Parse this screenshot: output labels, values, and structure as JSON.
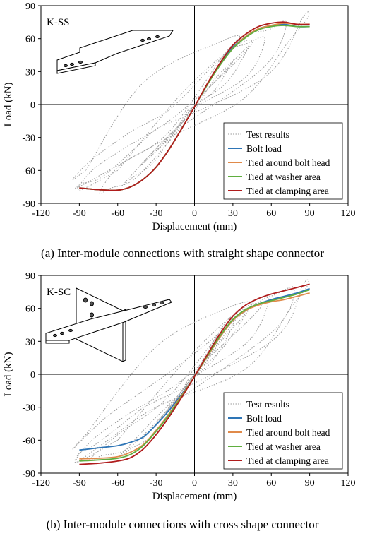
{
  "colors": {
    "test": "#9a9a9a",
    "bolt": "#2e75b6",
    "head": "#e08a4a",
    "washer": "#5fae3f",
    "clamp": "#b01c1c"
  },
  "chart_data": [
    {
      "type": "line",
      "panel_label": "K-SS",
      "caption": "(a) Inter-module connections with straight shape connector",
      "xlabel": "Displacement (mm)",
      "ylabel": "Load (kN)",
      "xlim": [
        -120,
        120
      ],
      "ylim": [
        -90,
        90
      ],
      "xticks": [
        "-120",
        "-90",
        "-60",
        "-30",
        "0",
        "30",
        "60",
        "90",
        "120"
      ],
      "yticks": [
        "90",
        "60",
        "30",
        "0",
        "-30",
        "-60",
        "-90"
      ],
      "grid": false,
      "legend_position": "bottom-right",
      "series": [
        {
          "name": "Test results",
          "style": "dotted",
          "color_key": "test"
        },
        {
          "name": "Bolt load",
          "style": "solid",
          "color_key": "bolt",
          "x": [
            -90,
            -75,
            -60,
            -50,
            -40,
            -30,
            -20,
            -10,
            0,
            10,
            20,
            30,
            40,
            50,
            60,
            70,
            80,
            90
          ],
          "y": [
            -76,
            -77.5,
            -78,
            -75,
            -68,
            -57,
            -41,
            -22,
            -2,
            18,
            37,
            52,
            62,
            69,
            72,
            73,
            71,
            71
          ]
        },
        {
          "name": "Tied around bolt head",
          "style": "solid",
          "color_key": "head",
          "x": [
            -90,
            -75,
            -60,
            -50,
            -40,
            -30,
            -20,
            -10,
            0,
            10,
            20,
            30,
            40,
            50,
            60,
            70,
            80,
            90
          ],
          "y": [
            -76,
            -77.5,
            -78,
            -75,
            -68,
            -57,
            -41,
            -22,
            -2,
            18,
            36,
            51,
            62,
            69,
            72,
            74,
            73,
            73
          ]
        },
        {
          "name": "Tied at washer area",
          "style": "solid",
          "color_key": "washer",
          "x": [
            -90,
            -75,
            -60,
            -50,
            -40,
            -30,
            -20,
            -10,
            0,
            10,
            20,
            30,
            40,
            50,
            60,
            70,
            80,
            90
          ],
          "y": [
            -76,
            -77.5,
            -78,
            -75,
            -68,
            -57,
            -41,
            -22,
            -2,
            18,
            36,
            51,
            61,
            68,
            71,
            72,
            71,
            71
          ]
        },
        {
          "name": "Tied at clamping area",
          "style": "solid",
          "color_key": "clamp",
          "x": [
            -90,
            -75,
            -60,
            -50,
            -40,
            -30,
            -20,
            -10,
            0,
            10,
            20,
            30,
            40,
            50,
            60,
            70,
            80,
            90
          ],
          "y": [
            -76,
            -77.5,
            -78,
            -75,
            -68,
            -57,
            -41,
            -22,
            -2,
            19,
            38,
            54,
            64,
            71,
            74,
            75,
            73,
            73
          ]
        }
      ],
      "test_loops": [
        {
          "x": [
            0,
            -12,
            -25,
            -30,
            -15,
            0,
            12,
            28,
            30,
            15,
            0
          ],
          "y": [
            0,
            -18,
            -36,
            -42,
            -24,
            0,
            16,
            36,
            40,
            12,
            0
          ]
        },
        {
          "x": [
            0,
            -15,
            -35,
            -42,
            -20,
            0,
            15,
            34,
            42,
            25,
            0
          ],
          "y": [
            0,
            -25,
            -48,
            -55,
            -28,
            -5,
            22,
            44,
            52,
            20,
            0
          ]
        },
        {
          "x": [
            -5,
            -30,
            -48,
            -55,
            -30,
            -5,
            25,
            40,
            55,
            40,
            -5
          ],
          "y": [
            -5,
            -50,
            -66,
            -72,
            -40,
            -10,
            45,
            55,
            60,
            25,
            -5
          ]
        },
        {
          "x": [
            -10,
            -45,
            -65,
            -74,
            -58,
            -20,
            30,
            58,
            72,
            55,
            -10
          ],
          "y": [
            -20,
            -66,
            -76,
            -80,
            -55,
            -25,
            55,
            68,
            75,
            35,
            -20
          ]
        },
        {
          "x": [
            -30,
            -70,
            -88,
            -92,
            -70,
            -20,
            38,
            72,
            88,
            85,
            55,
            -30
          ],
          "y": [
            -22,
            -64,
            -72,
            -76,
            -62,
            -30,
            5,
            55,
            78,
            80,
            25,
            -22
          ]
        },
        {
          "x": [
            -85,
            -95,
            -80,
            -50,
            -20,
            10,
            35,
            20,
            -40,
            -85
          ],
          "y": [
            -60,
            -68,
            -50,
            -25,
            -5,
            30,
            60,
            57,
            20,
            -60
          ]
        },
        {
          "x": [
            -60,
            -90,
            -80,
            -55,
            -20,
            20,
            45,
            30,
            -10,
            -60
          ],
          "y": [
            -60,
            -78,
            -60,
            -40,
            -15,
            25,
            56,
            52,
            10,
            -60
          ]
        }
      ]
    },
    {
      "type": "line",
      "panel_label": "K-SC",
      "caption": "(b) Inter-module connections with cross shape connector",
      "xlabel": "Displacement (mm)",
      "ylabel": "Load (kN)",
      "xlim": [
        -120,
        120
      ],
      "ylim": [
        -90,
        90
      ],
      "xticks": [
        "-120",
        "-90",
        "-60",
        "-30",
        "0",
        "30",
        "60",
        "90",
        "120"
      ],
      "yticks": [
        "90",
        "60",
        "30",
        "0",
        "-30",
        "-60",
        "-90"
      ],
      "grid": false,
      "legend_position": "bottom-right",
      "series": [
        {
          "name": "Test results",
          "style": "dotted",
          "color_key": "test"
        },
        {
          "name": "Bolt load",
          "style": "solid",
          "color_key": "bolt",
          "x": [
            -90,
            -75,
            -60,
            -50,
            -40,
            -30,
            -20,
            -10,
            0,
            10,
            20,
            30,
            40,
            50,
            60,
            70,
            80,
            90
          ],
          "y": [
            -69,
            -67,
            -65,
            -62,
            -57,
            -46,
            -33,
            -18,
            -2,
            16,
            34,
            49,
            58,
            64,
            68,
            71,
            74,
            78
          ]
        },
        {
          "name": "Tied around bolt head",
          "style": "solid",
          "color_key": "head",
          "x": [
            -90,
            -75,
            -60,
            -50,
            -40,
            -30,
            -20,
            -10,
            0,
            10,
            20,
            30,
            40,
            50,
            60,
            70,
            80,
            90
          ],
          "y": [
            -77,
            -76.5,
            -75,
            -71,
            -64,
            -51,
            -36,
            -19,
            -2,
            16,
            34,
            49,
            58,
            63,
            66,
            68,
            71,
            74
          ]
        },
        {
          "name": "Tied at washer area",
          "style": "solid",
          "color_key": "washer",
          "x": [
            -90,
            -75,
            -60,
            -50,
            -40,
            -30,
            -20,
            -10,
            0,
            10,
            20,
            30,
            40,
            50,
            60,
            70,
            80,
            90
          ],
          "y": [
            -79,
            -78,
            -76.5,
            -73,
            -65,
            -52,
            -37,
            -20,
            -2,
            17,
            35,
            50,
            59,
            64,
            67,
            70,
            73,
            77
          ]
        },
        {
          "name": "Tied at clamping area",
          "style": "solid",
          "color_key": "clamp",
          "x": [
            -90,
            -75,
            -60,
            -50,
            -40,
            -30,
            -20,
            -10,
            0,
            10,
            20,
            30,
            40,
            50,
            60,
            70,
            80,
            90
          ],
          "y": [
            -82,
            -81,
            -79,
            -76,
            -68,
            -55,
            -39,
            -21,
            -2,
            18,
            37,
            53,
            63,
            69,
            73,
            76,
            79,
            82
          ]
        }
      ],
      "test_loops": [
        {
          "x": [
            0,
            -12,
            -25,
            -28,
            -15,
            0,
            12,
            26,
            30,
            14,
            0
          ],
          "y": [
            0,
            -18,
            -38,
            -44,
            -24,
            0,
            18,
            40,
            44,
            12,
            0
          ]
        },
        {
          "x": [
            0,
            -18,
            -35,
            -40,
            -18,
            0,
            18,
            36,
            42,
            22,
            0
          ],
          "y": [
            0,
            -28,
            -52,
            -58,
            -30,
            -4,
            26,
            50,
            58,
            24,
            0
          ]
        },
        {
          "x": [
            -5,
            -30,
            -50,
            -58,
            -35,
            -5,
            25,
            45,
            58,
            42,
            -5
          ],
          "y": [
            -5,
            -52,
            -68,
            -74,
            -45,
            -8,
            48,
            62,
            68,
            30,
            -5
          ]
        },
        {
          "x": [
            -15,
            -50,
            -72,
            -82,
            -60,
            -20,
            35,
            62,
            78,
            62,
            -15
          ],
          "y": [
            -25,
            -66,
            -74,
            -78,
            -55,
            -20,
            58,
            72,
            78,
            40,
            -25
          ]
        },
        {
          "x": [
            -40,
            -75,
            -90,
            -92,
            -70,
            -30,
            40,
            75,
            88,
            85,
            60,
            -40
          ],
          "y": [
            -30,
            -62,
            -72,
            -80,
            -62,
            -30,
            5,
            60,
            80,
            82,
            30,
            -30
          ]
        },
        {
          "x": [
            -85,
            -95,
            -70,
            -40,
            -10,
            20,
            45,
            25,
            -30,
            -85
          ],
          "y": [
            -55,
            -68,
            -40,
            -15,
            10,
            38,
            64,
            60,
            25,
            -55
          ]
        },
        {
          "x": [
            -60,
            -92,
            -80,
            -50,
            -15,
            25,
            52,
            35,
            -5,
            -60
          ],
          "y": [
            -60,
            -80,
            -60,
            -35,
            -10,
            30,
            62,
            58,
            15,
            -60
          ]
        }
      ]
    }
  ]
}
